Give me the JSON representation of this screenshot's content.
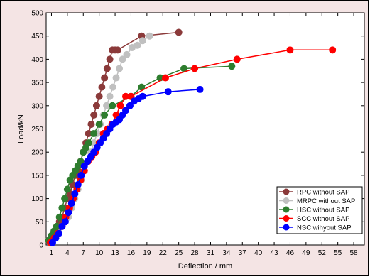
{
  "chart_data": {
    "type": "line",
    "title": "",
    "xlabel": "Deflection / mm",
    "ylabel": "Load/kN",
    "xlim": [
      0,
      60
    ],
    "ylim": [
      0,
      500
    ],
    "x_ticks": [
      1,
      4,
      7,
      10,
      13,
      16,
      19,
      22,
      25,
      28,
      31,
      34,
      37,
      40,
      43,
      46,
      49,
      52,
      55,
      58
    ],
    "y_ticks": [
      0,
      50,
      100,
      150,
      200,
      250,
      300,
      350,
      400,
      450,
      500
    ],
    "grid": false,
    "legend_position": "bottom-right",
    "series": [
      {
        "name": "RPC without SAP",
        "color": "#8b3a3a",
        "x": [
          0.5,
          1.0,
          1.5,
          2.0,
          2.5,
          3.0,
          3.5,
          4.0,
          4.5,
          5.0,
          5.5,
          6.0,
          6.5,
          7.0,
          7.5,
          8.0,
          8.5,
          9.0,
          9.5,
          10.0,
          10.5,
          11.0,
          11.5,
          12.0,
          12.5,
          13.0,
          13.5,
          18.0,
          25.0
        ],
        "y": [
          10,
          20,
          30,
          40,
          50,
          60,
          80,
          100,
          110,
          130,
          150,
          160,
          180,
          200,
          220,
          240,
          260,
          280,
          300,
          320,
          340,
          360,
          380,
          400,
          420,
          420,
          420,
          450,
          458
        ]
      },
      {
        "name": "MRPC without SAP",
        "color": "#c0c0c0",
        "x": [
          1.2,
          1.8,
          2.4,
          3.0,
          3.6,
          4.2,
          4.8,
          5.4,
          6.0,
          6.6,
          7.2,
          7.8,
          8.4,
          9.0,
          9.6,
          10.2,
          10.8,
          11.4,
          12.0,
          12.6,
          13.2,
          13.8,
          14.4,
          15.2,
          16.2,
          17.2,
          18.2,
          19.5
        ],
        "y": [
          10,
          20,
          30,
          40,
          50,
          60,
          80,
          100,
          120,
          140,
          160,
          180,
          200,
          220,
          240,
          260,
          280,
          300,
          320,
          340,
          360,
          380,
          400,
          410,
          425,
          430,
          440,
          450
        ]
      },
      {
        "name": "HSC without SAP",
        "color": "#2e7d2e",
        "x": [
          0.5,
          1.0,
          1.5,
          2.0,
          2.5,
          3.0,
          3.5,
          4.0,
          4.5,
          5.0,
          5.5,
          6.0,
          6.5,
          7.0,
          7.5,
          8.0,
          9.0,
          10.0,
          11.0,
          12.5,
          16.0,
          18.0,
          21.5,
          26.0,
          35.0
        ],
        "y": [
          10,
          20,
          30,
          40,
          60,
          80,
          100,
          120,
          140,
          150,
          160,
          170,
          180,
          200,
          210,
          220,
          240,
          260,
          280,
          300,
          320,
          340,
          360,
          380,
          385
        ]
      },
      {
        "name": "SCC without SAP",
        "color": "#ff0000",
        "x": [
          0.8,
          1.5,
          2.2,
          3.0,
          3.7,
          4.4,
          5.1,
          5.8,
          6.5,
          7.2,
          7.9,
          8.6,
          9.3,
          10.0,
          10.8,
          11.6,
          12.4,
          13.2,
          14.0,
          15.0,
          16.0,
          22.5,
          28.0,
          36.0,
          46.0,
          54.0
        ],
        "y": [
          5,
          15,
          25,
          40,
          60,
          80,
          100,
          120,
          140,
          160,
          180,
          190,
          200,
          220,
          240,
          250,
          260,
          280,
          300,
          320,
          320,
          360,
          380,
          400,
          420,
          420
        ]
      },
      {
        "name": "NSC wihyout SAP",
        "color": "#0000ff",
        "x": [
          1.2,
          1.8,
          2.4,
          3.0,
          3.6,
          4.2,
          4.8,
          5.4,
          6.0,
          6.6,
          7.2,
          7.8,
          8.4,
          9.0,
          9.6,
          10.2,
          10.8,
          11.4,
          12.0,
          12.6,
          13.2,
          13.8,
          14.4,
          15.0,
          15.8,
          16.6,
          17.4,
          18.2,
          23.0,
          29.0
        ],
        "y": [
          5,
          15,
          25,
          40,
          50,
          70,
          90,
          110,
          130,
          150,
          170,
          180,
          190,
          200,
          210,
          220,
          230,
          240,
          250,
          260,
          265,
          270,
          280,
          290,
          300,
          310,
          315,
          320,
          330,
          335
        ]
      }
    ]
  }
}
